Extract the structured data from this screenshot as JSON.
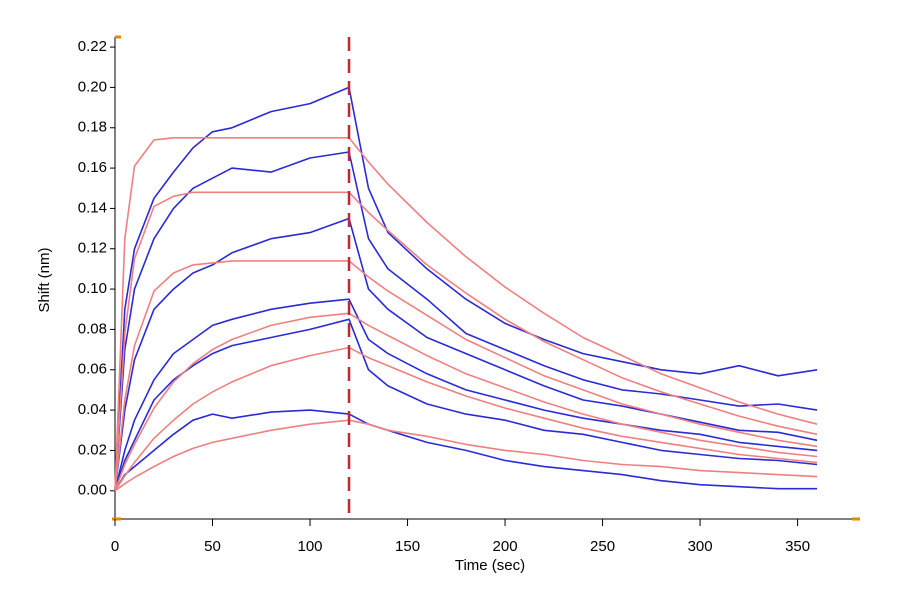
{
  "chart_data": {
    "type": "line",
    "xlabel": "Time (sec)",
    "ylabel": "Shift (nm)",
    "x": [
      0,
      5,
      10,
      20,
      30,
      40,
      50,
      60,
      80,
      100,
      120,
      130,
      140,
      160,
      180,
      200,
      220,
      240,
      260,
      280,
      300,
      320,
      340,
      360
    ],
    "series": [
      {
        "color": "#2b2bd6",
        "values": [
          0,
          0.09,
          0.12,
          0.145,
          0.158,
          0.17,
          0.178,
          0.18,
          0.188,
          0.192,
          0.2,
          0.15,
          0.128,
          0.11,
          0.095,
          0.083,
          0.075,
          0.068,
          0.064,
          0.06,
          0.058,
          0.062,
          0.057,
          0.06
        ]
      },
      {
        "color": "#2b2bd6",
        "values": [
          0,
          0.07,
          0.1,
          0.125,
          0.14,
          0.15,
          0.155,
          0.16,
          0.158,
          0.165,
          0.168,
          0.125,
          0.11,
          0.095,
          0.078,
          0.07,
          0.062,
          0.055,
          0.05,
          0.048,
          0.045,
          0.042,
          0.043,
          0.04
        ]
      },
      {
        "color": "#2b2bd6",
        "values": [
          0,
          0.04,
          0.065,
          0.09,
          0.1,
          0.108,
          0.112,
          0.118,
          0.125,
          0.128,
          0.135,
          0.1,
          0.09,
          0.076,
          0.068,
          0.06,
          0.052,
          0.045,
          0.042,
          0.038,
          0.034,
          0.03,
          0.029,
          0.025
        ]
      },
      {
        "color": "#2b2bd6",
        "values": [
          0,
          0.02,
          0.035,
          0.055,
          0.068,
          0.075,
          0.082,
          0.085,
          0.09,
          0.093,
          0.095,
          0.075,
          0.068,
          0.058,
          0.05,
          0.045,
          0.04,
          0.036,
          0.033,
          0.03,
          0.028,
          0.024,
          0.022,
          0.02
        ]
      },
      {
        "color": "#2b2bd6",
        "values": [
          0,
          0.015,
          0.025,
          0.045,
          0.055,
          0.062,
          0.068,
          0.072,
          0.076,
          0.08,
          0.085,
          0.06,
          0.052,
          0.043,
          0.038,
          0.035,
          0.03,
          0.028,
          0.024,
          0.02,
          0.018,
          0.016,
          0.015,
          0.013
        ]
      },
      {
        "color": "#2b2bd6",
        "values": [
          0,
          0.008,
          0.012,
          0.02,
          0.028,
          0.035,
          0.038,
          0.036,
          0.039,
          0.04,
          0.038,
          0.033,
          0.03,
          0.024,
          0.02,
          0.015,
          0.012,
          0.01,
          0.008,
          0.005,
          0.003,
          0.002,
          0.001,
          0.001
        ]
      },
      {
        "color": "#f08080",
        "values": [
          0,
          0.125,
          0.161,
          0.174,
          0.175,
          0.175,
          0.175,
          0.175,
          0.175,
          0.175,
          0.175,
          0.163,
          0.152,
          0.133,
          0.116,
          0.101,
          0.088,
          0.076,
          0.067,
          0.058,
          0.051,
          0.044,
          0.038,
          0.033
        ]
      },
      {
        "color": "#f08080",
        "values": [
          0,
          0.078,
          0.115,
          0.141,
          0.146,
          0.148,
          0.148,
          0.148,
          0.148,
          0.148,
          0.148,
          0.138,
          0.129,
          0.112,
          0.098,
          0.085,
          0.074,
          0.065,
          0.056,
          0.049,
          0.043,
          0.037,
          0.032,
          0.028
        ]
      },
      {
        "color": "#f08080",
        "values": [
          0,
          0.045,
          0.072,
          0.099,
          0.108,
          0.112,
          0.113,
          0.114,
          0.114,
          0.114,
          0.114,
          0.106,
          0.099,
          0.087,
          0.075,
          0.066,
          0.057,
          0.05,
          0.043,
          0.038,
          0.033,
          0.029,
          0.025,
          0.022
        ]
      },
      {
        "color": "#f08080",
        "values": [
          0,
          0.013,
          0.023,
          0.041,
          0.054,
          0.063,
          0.07,
          0.075,
          0.082,
          0.086,
          0.088,
          0.082,
          0.077,
          0.067,
          0.058,
          0.051,
          0.044,
          0.038,
          0.033,
          0.029,
          0.025,
          0.022,
          0.019,
          0.017
        ]
      },
      {
        "color": "#f08080",
        "values": [
          0,
          0.0074,
          0.014,
          0.026,
          0.035,
          0.043,
          0.049,
          0.054,
          0.062,
          0.067,
          0.071,
          0.066,
          0.062,
          0.054,
          0.047,
          0.041,
          0.036,
          0.031,
          0.027,
          0.024,
          0.021,
          0.018,
          0.016,
          0.014
        ]
      },
      {
        "color": "#f08080",
        "values": [
          0,
          0.0035,
          0.0066,
          0.012,
          0.017,
          0.021,
          0.024,
          0.026,
          0.03,
          0.033,
          0.035,
          0.033,
          0.03,
          0.027,
          0.023,
          0.02,
          0.018,
          0.015,
          0.013,
          0.012,
          0.01,
          0.009,
          0.008,
          0.007
        ]
      }
    ],
    "vline": {
      "x": 120,
      "color": "#c0282d"
    },
    "xlim": [
      0,
      382
    ],
    "ylim": [
      -0.014,
      0.225
    ],
    "xticks": [
      0,
      50,
      100,
      150,
      200,
      250,
      300,
      350
    ],
    "yticks": [
      {
        "value": 0,
        "label": "0.00"
      },
      {
        "value": 0.02,
        "label": "0.02"
      },
      {
        "value": 0.04,
        "label": "0.04"
      },
      {
        "value": 0.06,
        "label": "0.06"
      },
      {
        "value": 0.08,
        "label": "0.08"
      },
      {
        "value": 0.1,
        "label": "0.10"
      },
      {
        "value": 0.12,
        "label": "0.12"
      },
      {
        "value": 0.14,
        "label": "0.14"
      },
      {
        "value": 0.16,
        "label": "0.16"
      },
      {
        "value": 0.18,
        "label": "0.18"
      },
      {
        "value": 0.2,
        "label": "0.20"
      },
      {
        "value": 0.22,
        "label": "0.22"
      }
    ]
  }
}
